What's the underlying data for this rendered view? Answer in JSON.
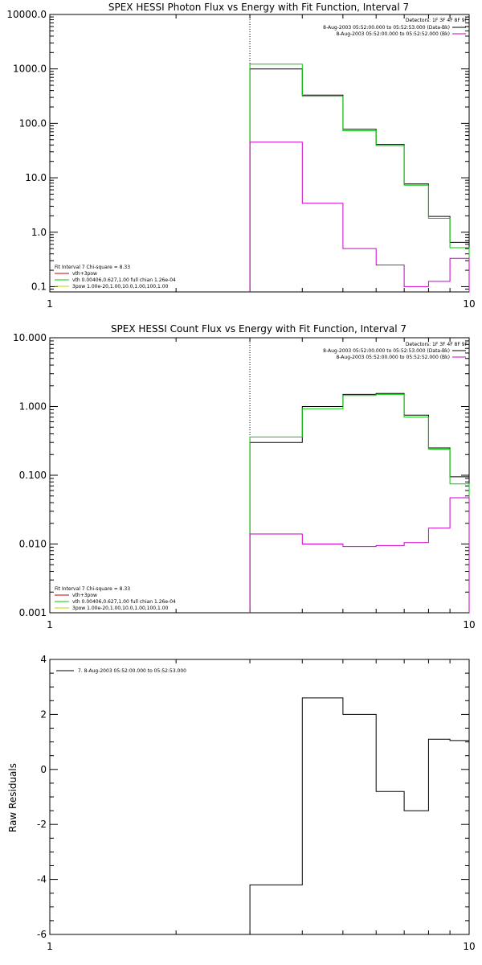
{
  "chart_data": [
    {
      "type": "line",
      "title": "SPEX HESSI Photon Flux vs Energy with Fit Function, Interval 7",
      "xscale": "log",
      "yscale": "log",
      "xlim": [
        1,
        10
      ],
      "ylim": [
        0.08,
        10000
      ],
      "xticks": [
        "1",
        "10"
      ],
      "yticks": [
        {
          "v": 0.1,
          "label": "0.1"
        },
        {
          "v": 1,
          "label": "1.0"
        },
        {
          "v": 10,
          "label": "10.0"
        },
        {
          "v": 100,
          "label": "100.0"
        },
        {
          "v": 1000,
          "label": "1000.0"
        },
        {
          "v": 10000,
          "label": "10000.0"
        }
      ],
      "vline_x": 3,
      "edges": [
        3,
        4,
        5,
        6,
        7,
        8,
        9,
        10
      ],
      "series": [
        {
          "key": "data",
          "color": "#000000",
          "values": [
            1000,
            330,
            78,
            41,
            7.7,
            1.95,
            0.65
          ]
        },
        {
          "key": "model",
          "color": "#00cc00",
          "values": [
            1220,
            315,
            73,
            39,
            7.3,
            1.8,
            0.52
          ]
        },
        {
          "key": "background",
          "color": "#cc00cc",
          "values": [
            45,
            3.4,
            0.5,
            0.25,
            0.1,
            0.125,
            0.33
          ]
        }
      ],
      "legend_topright": {
        "header": "Detectors: 1F 3F 4F 8F 9F",
        "entries": [
          {
            "label": "8-Aug-2003 05:52:00.000 to 05:52:53.000 (Data-Bk)",
            "color": "#000000"
          },
          {
            "label": "8-Aug-2003 05:52:00.000 to 05:52:52.000 (Bk)",
            "color": "#cc00cc"
          }
        ]
      },
      "legend_bottomleft": {
        "header": "Fit Interval 7   Chi-square = 8.33",
        "entries": [
          {
            "label": "vth+3pow",
            "color": "#cc0000"
          },
          {
            "label": "vth 0.00406,0.627,1.00  full chian 1.26e-04",
            "color": "#00cc00"
          },
          {
            "label": "3pow 1.00e-20,1.00,10.0,1.00,100,1.00",
            "color": "#cccc00"
          }
        ]
      }
    },
    {
      "type": "line",
      "title": "SPEX HESSI Count Flux vs Energy with Fit Function, Interval 7",
      "xscale": "log",
      "yscale": "log",
      "xlim": [
        1,
        10
      ],
      "ylim": [
        0.001,
        10
      ],
      "xticks": [
        "1",
        "10"
      ],
      "yticks": [
        {
          "v": 0.001,
          "label": "0.001"
        },
        {
          "v": 0.01,
          "label": "0.010"
        },
        {
          "v": 0.1,
          "label": "0.100"
        },
        {
          "v": 1,
          "label": "1.000"
        },
        {
          "v": 10,
          "label": "10.000"
        }
      ],
      "vline_x": 3,
      "edges": [
        3,
        4,
        5,
        6,
        7,
        8,
        9,
        10
      ],
      "series": [
        {
          "key": "data",
          "color": "#000000",
          "values": [
            0.3,
            1.0,
            1.5,
            1.55,
            0.75,
            0.25,
            0.095
          ]
        },
        {
          "key": "model",
          "color": "#00cc00",
          "values": [
            0.36,
            0.93,
            1.45,
            1.5,
            0.7,
            0.24,
            0.075
          ]
        },
        {
          "key": "background",
          "color": "#cc00cc",
          "values": [
            0.014,
            0.01,
            0.0092,
            0.0095,
            0.0105,
            0.017,
            0.047
          ]
        }
      ],
      "legend_topright": {
        "header": "Detectors: 1F 3F 4F 8F 9F",
        "entries": [
          {
            "label": "8-Aug-2003 05:52:00.000 to 05:52:53.000 (Data-Bk)",
            "color": "#000000"
          },
          {
            "label": "8-Aug-2003 05:52:00.000 to 05:52:52.000 (Bk)",
            "color": "#cc00cc"
          }
        ]
      },
      "legend_bottomleft": {
        "header": "Fit Interval 7   Chi-square = 8.33",
        "entries": [
          {
            "label": "vth+3pow",
            "color": "#cc0000"
          },
          {
            "label": "vth 0.00406,0.627,1.00  full chian 1.26e-04",
            "color": "#00cc00"
          },
          {
            "label": "3pow 1.00e-20,1.00,10.0,1.00,100,1.00",
            "color": "#cccc00"
          }
        ]
      }
    },
    {
      "type": "line",
      "title": "",
      "ylabel": "Raw Residuals",
      "xscale": "log",
      "yscale": "linear",
      "xlim": [
        1,
        10
      ],
      "ylim": [
        -6,
        4
      ],
      "xticks": [
        "1",
        "10"
      ],
      "yticks": [
        {
          "v": -6,
          "label": "-6"
        },
        {
          "v": -4,
          "label": "-4"
        },
        {
          "v": -2,
          "label": "-2"
        },
        {
          "v": 0,
          "label": "0"
        },
        {
          "v": 2,
          "label": "2"
        },
        {
          "v": 4,
          "label": "4"
        }
      ],
      "edges": [
        3,
        4,
        5,
        6,
        7,
        8,
        9,
        10
      ],
      "series": [
        {
          "key": "residuals",
          "color": "#000000",
          "values": [
            -4.2,
            2.6,
            2.0,
            -0.8,
            -1.5,
            1.1,
            1.05
          ]
        }
      ],
      "legend": {
        "label": "7.  8-Aug-2003 05:52:00.000 to 05:52:53.000",
        "color": "#000000"
      }
    }
  ]
}
